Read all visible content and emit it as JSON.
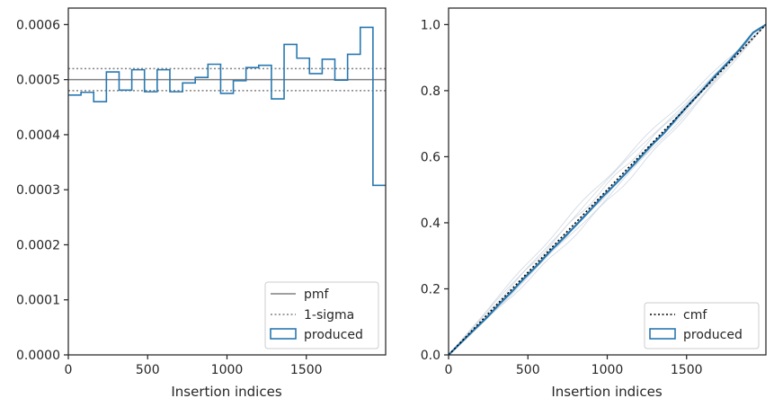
{
  "chart_data": [
    {
      "type": "line",
      "xlabel": "Insertion indices",
      "ylabel": "",
      "xlim": [
        0,
        2000
      ],
      "ylim": [
        0,
        0.00063
      ],
      "xticks": [
        0,
        500,
        1000,
        1500
      ],
      "xtick_labels": [
        "0",
        "500",
        "1000",
        "1500"
      ],
      "yticks": [
        0,
        0.0001,
        0.0002,
        0.0003,
        0.0004,
        0.0005,
        0.0006
      ],
      "ytick_labels": [
        "0.0000",
        "0.0001",
        "0.0002",
        "0.0003",
        "0.0004",
        "0.0005",
        "0.0006"
      ],
      "grid": false,
      "legend_position": "lower-right",
      "pmf": {
        "name": "pmf",
        "value": 0.0005,
        "color": "#808080"
      },
      "sigma": {
        "name": "1-sigma",
        "values": [
          0.00048,
          0.00052
        ],
        "color": "#808080"
      },
      "histogram": {
        "name": "produced",
        "color": "#2878b0",
        "bin_edges": [
          0,
          80,
          160,
          240,
          320,
          400,
          480,
          560,
          640,
          720,
          800,
          880,
          960,
          1040,
          1120,
          1200,
          1280,
          1360,
          1440,
          1520,
          1600,
          1680,
          1760,
          1840,
          1920,
          2000
        ],
        "values": [
          0.000472,
          0.000477,
          0.00046,
          0.000514,
          0.000481,
          0.000518,
          0.000478,
          0.000518,
          0.000478,
          0.000494,
          0.000504,
          0.000528,
          0.000475,
          0.000498,
          0.000522,
          0.000526,
          0.000465,
          0.000564,
          0.000539,
          0.000511,
          0.000537,
          0.000499,
          0.000546,
          0.000595,
          0.000308
        ]
      },
      "legend": [
        "pmf",
        "1-sigma",
        "produced"
      ]
    },
    {
      "type": "line",
      "xlabel": "Insertion indices",
      "ylabel": "",
      "xlim": [
        0,
        2000
      ],
      "ylim": [
        0,
        1.05
      ],
      "xticks": [
        0,
        500,
        1000,
        1500
      ],
      "xtick_labels": [
        "0",
        "500",
        "1000",
        "1500"
      ],
      "yticks": [
        0,
        0.2,
        0.4,
        0.6,
        0.8,
        1.0
      ],
      "ytick_labels": [
        "0.0",
        "0.2",
        "0.4",
        "0.6",
        "0.8",
        "1.0"
      ],
      "grid": false,
      "legend_position": "lower-right",
      "cmf": {
        "name": "cmf",
        "x": [
          0,
          2000
        ],
        "y": [
          0,
          1.0
        ],
        "color": "#000000"
      },
      "produced": {
        "name": "produced",
        "color": "#2878b0",
        "x": [
          0,
          80,
          160,
          240,
          320,
          400,
          480,
          560,
          640,
          720,
          800,
          880,
          960,
          1040,
          1120,
          1200,
          1280,
          1360,
          1440,
          1520,
          1600,
          1680,
          1760,
          1840,
          1920,
          2000
        ],
        "y": [
          0,
          0.0378,
          0.0759,
          0.1127,
          0.1538,
          0.1923,
          0.2338,
          0.272,
          0.3135,
          0.3517,
          0.3912,
          0.4315,
          0.4737,
          0.5117,
          0.5515,
          0.5933,
          0.6354,
          0.6726,
          0.7177,
          0.7608,
          0.8017,
          0.8447,
          0.8846,
          0.9283,
          0.9759,
          1.0
        ]
      },
      "bands_color": "#d4dbe3",
      "band_offsets": [
        0.025,
        -0.022,
        0.04,
        -0.035,
        0.015,
        -0.01
      ],
      "legend": [
        "cmf",
        "produced"
      ]
    }
  ]
}
